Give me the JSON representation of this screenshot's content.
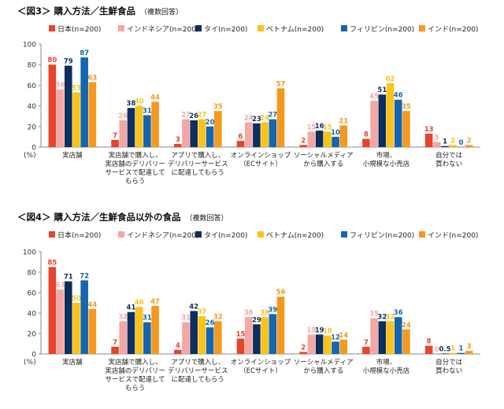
{
  "colors": {
    "japan": "#e8432b",
    "indonesia": "#f4a7a3",
    "thailand": "#0d2f5e",
    "vietnam": "#fbc21a",
    "philippines": "#1565b0",
    "india": "#f39a1e",
    "axis": "#888888",
    "text": "#222222"
  },
  "chart_data": [
    {
      "type": "bar",
      "title_prefix": "＜",
      "title_label": "図3",
      "title_suffix": "＞",
      "title": "購入方法／生鮮食品",
      "subtitle": "（複数回答）",
      "ylabel": "(%)",
      "ylim": [
        0,
        100
      ],
      "yticks": [
        0,
        20,
        40,
        60,
        80,
        100
      ],
      "legend_position": "top",
      "categories": [
        [
          "実店舗"
        ],
        [
          "実店舗で購入し、",
          "実店舗のデリバリー",
          "サービスで配達して",
          "もらう"
        ],
        [
          "アプリで購入し、",
          "デリバリーサービス",
          "に配達してもらう"
        ],
        [
          "オンラインショップ",
          "（ECサイト）"
        ],
        [
          "ソーシャルメディア",
          "から購入する"
        ],
        [
          "市場、",
          "小規模な小売店"
        ],
        [
          "自分では",
          "買わない"
        ]
      ],
      "series": [
        {
          "name": "日本(n=200)",
          "color_key": "japan",
          "values": [
            80,
            7,
            3,
            6,
            2,
            8,
            13
          ]
        },
        {
          "name": "インドネシア(n=200)",
          "color_key": "indonesia",
          "values": [
            56,
            26,
            27,
            24,
            15,
            45,
            5
          ]
        },
        {
          "name": "タイ(n=200)",
          "color_key": "thailand",
          "values": [
            79,
            38,
            26,
            23,
            16,
            51,
            1
          ]
        },
        {
          "name": "ベトナム(n=200)",
          "color_key": "vietnam",
          "values": [
            53,
            40,
            27,
            24,
            15,
            62,
            2
          ]
        },
        {
          "name": "フィリピン(n=200)",
          "color_key": "philippines",
          "values": [
            87,
            31,
            20,
            27,
            10,
            46,
            0
          ]
        },
        {
          "name": "インド(n=200)",
          "color_key": "india",
          "values": [
            63,
            44,
            35,
            57,
            21,
            35,
            2
          ]
        }
      ]
    },
    {
      "type": "bar",
      "title_prefix": "＜",
      "title_label": "図4",
      "title_suffix": "＞",
      "title": "購入方法／生鮮食品以外の食品",
      "subtitle": "（複数回答）",
      "ylabel": "(%)",
      "ylim": [
        0,
        100
      ],
      "yticks": [
        0,
        20,
        40,
        60,
        80,
        100
      ],
      "legend_position": "top",
      "categories": [
        [
          "実店舗"
        ],
        [
          "実店舗で購入し、",
          "実店舗のデリバリー",
          "サービスで配達して",
          "もらう"
        ],
        [
          "アプリで購入し、",
          "デリバリーサービス",
          "に配達してもらう"
        ],
        [
          "オンラインショップ",
          "（ECサイト）"
        ],
        [
          "ソーシャルメディア",
          "から購入する"
        ],
        [
          "市場、",
          "小規模な小売店"
        ],
        [
          "自分では",
          "買わない"
        ]
      ],
      "series": [
        {
          "name": "日本(n=200)",
          "color_key": "japan",
          "values": [
            85,
            7,
            4,
            15,
            2,
            7,
            8
          ]
        },
        {
          "name": "インドネシア(n=200)",
          "color_key": "indonesia",
          "values": [
            63,
            32,
            31,
            36,
            19,
            35,
            0
          ]
        },
        {
          "name": "タイ(n=200)",
          "color_key": "thailand",
          "values": [
            71,
            41,
            42,
            29,
            19,
            32,
            0.5
          ]
        },
        {
          "name": "ベトナム(n=200)",
          "color_key": "vietnam",
          "values": [
            50,
            46,
            37,
            36,
            18,
            32,
            1
          ]
        },
        {
          "name": "フィリピン(n=200)",
          "color_key": "philippines",
          "values": [
            72,
            31,
            26,
            39,
            12,
            36,
            1
          ]
        },
        {
          "name": "インド(n=200)",
          "color_key": "india",
          "values": [
            44,
            47,
            32,
            56,
            14,
            24,
            3
          ]
        }
      ]
    }
  ]
}
